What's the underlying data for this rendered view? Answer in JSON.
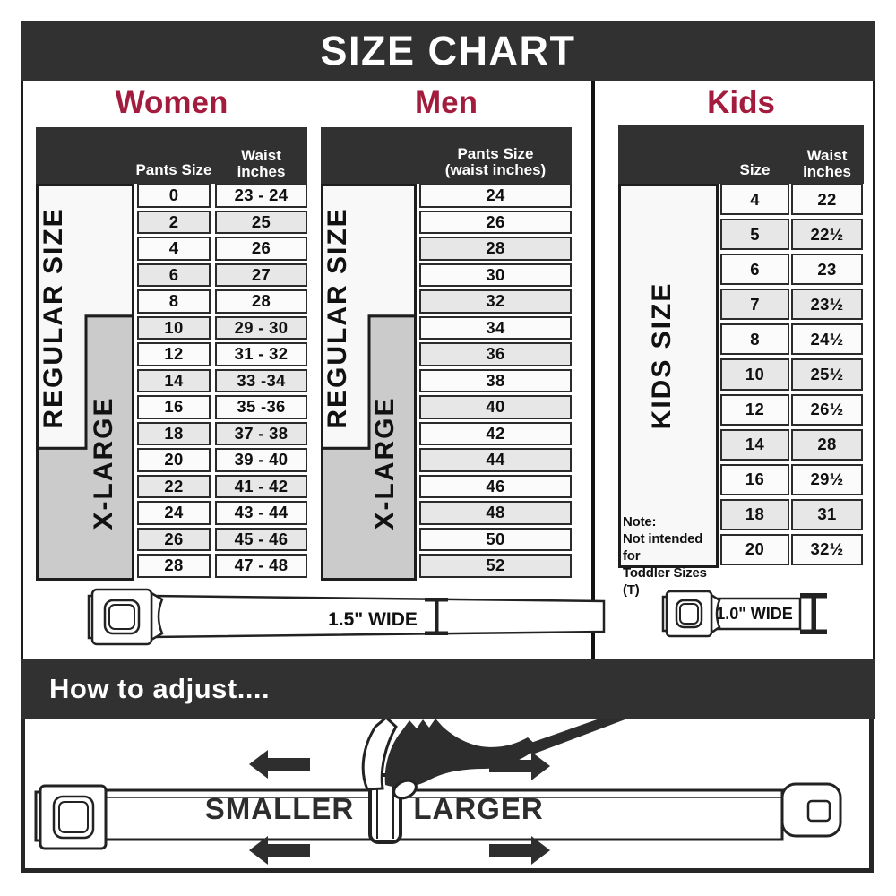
{
  "banner": {
    "title": "SIZE CHART"
  },
  "sections": {
    "women": {
      "title": "Women",
      "col1_header": "Pants Size",
      "col2_header_line1": "Waist",
      "col2_header_line2": "inches",
      "regular_band": "REGULAR SIZE",
      "xlarge_band": "X-LARGE"
    },
    "men": {
      "title": "Men",
      "header_line1": "Pants Size",
      "header_line2": "(waist inches)",
      "regular_band": "REGULAR SIZE",
      "xlarge_band": "X-LARGE"
    },
    "kids": {
      "title": "Kids",
      "col1_header": "Size",
      "col2_header_line1": "Waist",
      "col2_header_line2": "inches",
      "band": "KIDS SIZE",
      "note_line1": "Note:",
      "note_line2": "Not intended for",
      "note_line3": "Toddler Sizes (T)"
    }
  },
  "belts": {
    "adult_width_label": "1.5\" WIDE",
    "kids_width_label": "1.0\" WIDE"
  },
  "adjust": {
    "title": "How to adjust....",
    "smaller_label": "SMALLER",
    "larger_label": "LARGER"
  },
  "colors": {
    "dark_bar": "#313131",
    "accent_red": "#A31C3D",
    "band_gray": "#CBCBCB",
    "band_light": "#F8F8F8",
    "row_light": "#FBFBFB",
    "row_shaded": "#E7E7E7",
    "line": "#222222"
  },
  "chart_data": [
    {
      "type": "table",
      "title": "Women",
      "columns": [
        "Pants Size",
        "Waist inches"
      ],
      "rows": [
        [
          "0",
          "23 - 24"
        ],
        [
          "2",
          "25"
        ],
        [
          "4",
          "26"
        ],
        [
          "6",
          "27"
        ],
        [
          "8",
          "28"
        ],
        [
          "10",
          "29 - 30"
        ],
        [
          "12",
          "31 - 32"
        ],
        [
          "14",
          "33 -34"
        ],
        [
          "16",
          "35 -36"
        ],
        [
          "18",
          "37 - 38"
        ],
        [
          "20",
          "39 - 40"
        ],
        [
          "22",
          "41 - 42"
        ],
        [
          "24",
          "43 - 44"
        ],
        [
          "26",
          "45 - 46"
        ],
        [
          "28",
          "47 - 48"
        ]
      ],
      "shaded_rows": [
        1,
        3,
        5,
        7,
        9,
        11,
        13
      ],
      "bands": [
        {
          "label": "REGULAR SIZE",
          "from_row": "0",
          "to_row": "18"
        },
        {
          "label": "X-LARGE",
          "from_row": "10",
          "to_row": "28"
        }
      ],
      "belt_width": "1.5\" WIDE"
    },
    {
      "type": "table",
      "title": "Men",
      "columns": [
        "Pants Size (waist inches)"
      ],
      "rows": [
        [
          "24"
        ],
        [
          "26"
        ],
        [
          "28"
        ],
        [
          "30"
        ],
        [
          "32"
        ],
        [
          "34"
        ],
        [
          "36"
        ],
        [
          "38"
        ],
        [
          "40"
        ],
        [
          "42"
        ],
        [
          "44"
        ],
        [
          "46"
        ],
        [
          "48"
        ],
        [
          "50"
        ],
        [
          "52"
        ]
      ],
      "shaded_rows": [
        2,
        4,
        6,
        8,
        10,
        12,
        14
      ],
      "bands": [
        {
          "label": "REGULAR SIZE",
          "from_row": "24",
          "to_row": "42"
        },
        {
          "label": "X-LARGE",
          "from_row": "34",
          "to_row": "52"
        }
      ],
      "belt_width": "1.5\" WIDE"
    },
    {
      "type": "table",
      "title": "Kids",
      "columns": [
        "Size",
        "Waist inches"
      ],
      "rows": [
        [
          "4",
          "22"
        ],
        [
          "5",
          "22½"
        ],
        [
          "6",
          "23"
        ],
        [
          "7",
          "23½"
        ],
        [
          "8",
          "24½"
        ],
        [
          "10",
          "25½"
        ],
        [
          "12",
          "26½"
        ],
        [
          "14",
          "28"
        ],
        [
          "16",
          "29½"
        ],
        [
          "18",
          "31"
        ],
        [
          "20",
          "32½"
        ]
      ],
      "shaded_rows": [
        1,
        3,
        5,
        7,
        9
      ],
      "bands": [
        {
          "label": "KIDS SIZE",
          "from_row": "4",
          "to_row": "20"
        }
      ],
      "note": "Note: Not intended for Toddler Sizes (T)",
      "belt_width": "1.0\" WIDE"
    }
  ]
}
